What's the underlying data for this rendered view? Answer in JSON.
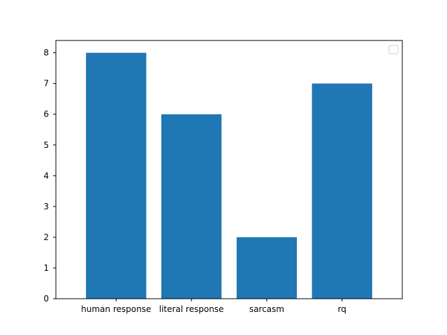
{
  "chart_data": {
    "type": "bar",
    "title": "",
    "xlabel": "",
    "ylabel": "",
    "categories": [
      "human response",
      "literal response",
      "sarcasm",
      "rq"
    ],
    "values": [
      8,
      6,
      2,
      7
    ],
    "ylim": [
      0,
      8.4
    ],
    "yticks": [
      "0",
      "1",
      "2",
      "3",
      "4",
      "5",
      "6",
      "7",
      "8"
    ],
    "bar_color": "#1f77b4",
    "grid": false,
    "legend": {
      "placement": "top-right",
      "entries": []
    }
  }
}
